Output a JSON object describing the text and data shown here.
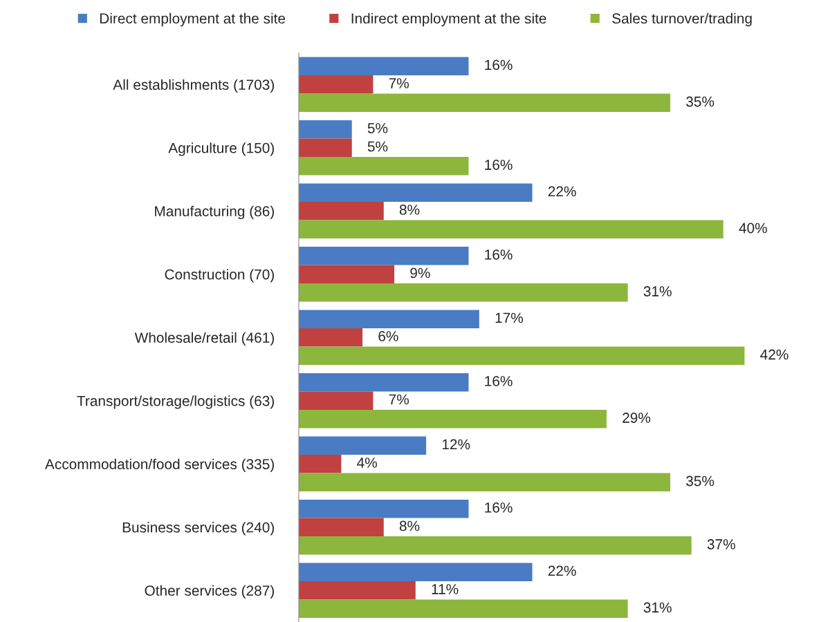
{
  "chart_data": {
    "type": "bar",
    "orientation": "horizontal",
    "legend": "top",
    "grid": false,
    "categories": [
      "All establishments (1703)",
      "Agriculture (150)",
      "Manufacturing (86)",
      "Construction (70)",
      "Wholesale/retail (461)",
      "Transport/storage/logistics (63)",
      "Accommodation/food services (335)",
      "Business services (240)",
      "Other services (287)"
    ],
    "series": [
      {
        "name": "Direct employment at the site",
        "color": "#4a7cc4",
        "values": [
          16,
          5,
          22,
          16,
          17,
          16,
          12,
          16,
          22
        ],
        "value_labels": [
          "16%",
          "5%",
          "22%",
          "16%",
          "17%",
          "16%",
          "12%",
          "16%",
          "22%"
        ]
      },
      {
        "name": "Indirect employment at the site",
        "color": "#c0413f",
        "values": [
          7,
          5,
          8,
          9,
          6,
          7,
          4,
          8,
          11
        ],
        "value_labels": [
          "7%",
          "5%",
          "8%",
          "9%",
          "6%",
          "7%",
          "4%",
          "8%",
          "11%"
        ]
      },
      {
        "name": "Sales turnover/trading",
        "color": "#8db63c",
        "values": [
          35,
          16,
          40,
          31,
          42,
          29,
          35,
          37,
          31
        ],
        "value_labels": [
          "35%",
          "16%",
          "40%",
          "31%",
          "42%",
          "29%",
          "35%",
          "37%",
          "31%"
        ]
      }
    ]
  }
}
